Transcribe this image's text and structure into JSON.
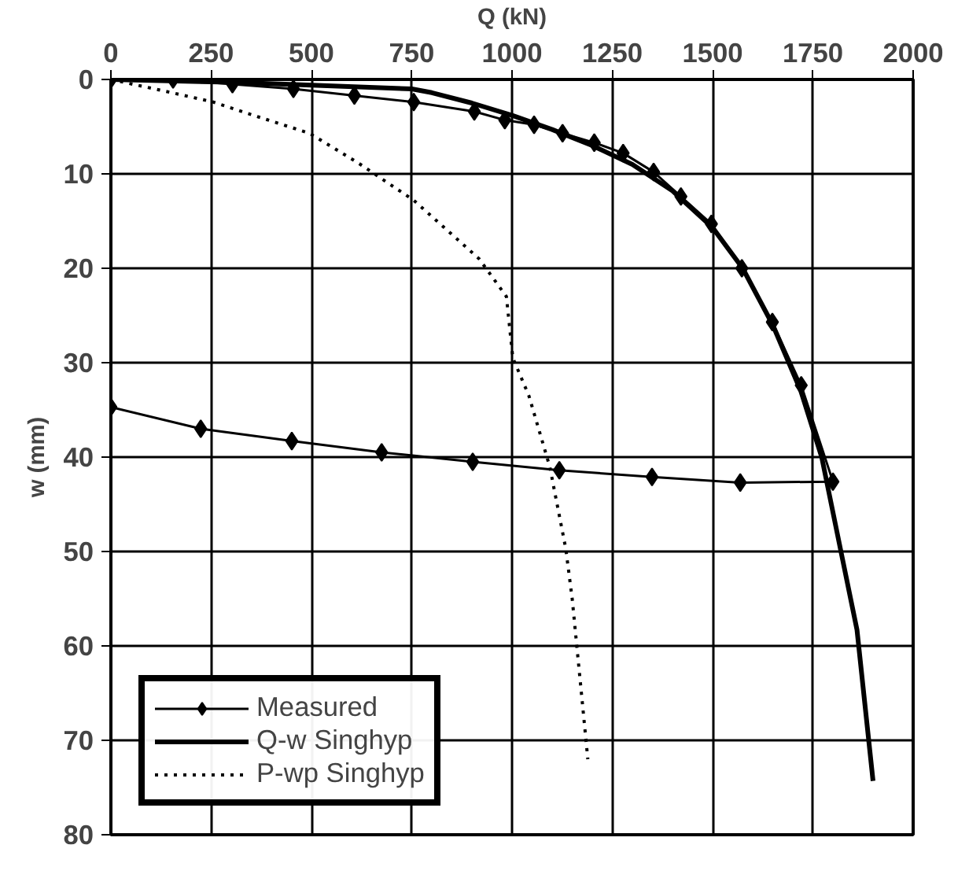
{
  "chart_data": {
    "type": "line",
    "xlabel": "Q (kN)",
    "ylabel": "w (mm)",
    "xlim": [
      0,
      2000
    ],
    "ylim": [
      80,
      0
    ],
    "xticks": [
      0,
      250,
      500,
      750,
      1000,
      1250,
      1500,
      1750,
      2000
    ],
    "yticks": [
      0,
      10,
      20,
      30,
      40,
      50,
      60,
      70,
      80
    ],
    "grid": true,
    "legend": "bottom left",
    "series": [
      {
        "name": "Measured",
        "color": "#000000",
        "marker": "diamond",
        "line_style": "solid",
        "x": [
          0,
          155,
          303,
          455,
          607,
          755,
          906,
          982,
          1055,
          1126,
          1205,
          1277,
          1353,
          1421,
          1497,
          1573,
          1649,
          1721,
          1800,
          1569,
          1349,
          1118,
          902,
          675,
          451,
          224,
          0
        ],
        "values": [
          0,
          0,
          0.5,
          1,
          1.7,
          2.4,
          3.4,
          4.3,
          4.8,
          5.7,
          6.7,
          7.8,
          9.8,
          12.4,
          15.3,
          20,
          25.7,
          32.4,
          42.6,
          42.7,
          42.1,
          41.4,
          40.5,
          39.5,
          38.3,
          37,
          34.7
        ]
      },
      {
        "name": "Q-w Singhyp",
        "color": "#000000",
        "marker": "none",
        "line_style": "solid",
        "x": [
          0,
          300,
          500,
          750,
          800,
          900,
          1000,
          1100,
          1200,
          1300,
          1400,
          1500,
          1575,
          1650,
          1720,
          1772,
          1820,
          1860,
          1900
        ],
        "values": [
          0,
          0.3,
          0.6,
          1.0,
          1.4,
          2.5,
          3.8,
          5.3,
          7,
          9,
          11.8,
          15.7,
          20,
          26,
          33,
          40,
          50,
          58.3,
          74.3
        ]
      },
      {
        "name": "P-wp Singhyp",
        "color": "#000000",
        "marker": "none",
        "line_style": "dotted",
        "x": [
          0,
          152,
          256,
          363,
          495,
          615,
          755,
          918,
          986,
          1002,
          1042,
          1094,
          1134,
          1150,
          1189
        ],
        "values": [
          0,
          1.4,
          2.4,
          3.9,
          5.7,
          8.8,
          12.8,
          19,
          23,
          29.5,
          33.5,
          41,
          49.7,
          55,
          72
        ]
      }
    ]
  }
}
